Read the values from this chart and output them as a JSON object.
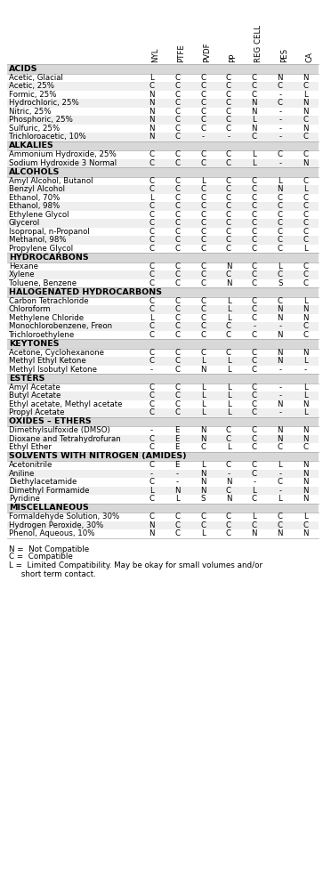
{
  "columns": [
    "NYL",
    "PTFE",
    "PVDF",
    "PP",
    "REG CELL",
    "PES",
    "CA"
  ],
  "sections": [
    {
      "name": "ACIDS",
      "rows": [
        [
          "Acetic, Glacial",
          "L",
          "C",
          "C",
          "C",
          "C",
          "N",
          "N"
        ],
        [
          "Acetic, 25%",
          "C",
          "C",
          "C",
          "C",
          "C",
          "C",
          "C"
        ],
        [
          "Formic, 25%",
          "N",
          "C",
          "C",
          "C",
          "C",
          "-",
          "L"
        ],
        [
          "Hydrochloric, 25%",
          "N",
          "C",
          "C",
          "C",
          "N",
          "C",
          "N"
        ],
        [
          "Nitric, 25%",
          "N",
          "C",
          "C",
          "C",
          "N",
          "-",
          "N"
        ],
        [
          "Phosphoric, 25%",
          "N",
          "C",
          "C",
          "C",
          "L",
          "-",
          "C"
        ],
        [
          "Sulfuric, 25%",
          "N",
          "C",
          "C",
          "C",
          "N",
          "-",
          "N"
        ],
        [
          "Trichloroacetic, 10%",
          "N",
          "C",
          "-",
          "-",
          "C",
          "-",
          "C"
        ]
      ]
    },
    {
      "name": "ALKALIES",
      "rows": [
        [
          "Ammonium Hydroxide, 25%",
          "C",
          "C",
          "C",
          "C",
          "L",
          "C",
          "C"
        ],
        [
          "Sodium Hydroxide 3 Normal",
          "C",
          "C",
          "C",
          "C",
          "L",
          "-",
          "N"
        ]
      ]
    },
    {
      "name": "ALCOHOLS",
      "rows": [
        [
          "Amyl Alcohol, Butanol",
          "C",
          "C",
          "L",
          "C",
          "C",
          "L",
          "C"
        ],
        [
          "Benzyl Alcohol",
          "C",
          "C",
          "C",
          "C",
          "C",
          "N",
          "L"
        ],
        [
          "Ethanol, 70%",
          "L",
          "C",
          "C",
          "C",
          "C",
          "C",
          "C"
        ],
        [
          "Ethanol, 98%",
          "C",
          "C",
          "C",
          "C",
          "C",
          "C",
          "C"
        ],
        [
          "Ethylene Glycol",
          "C",
          "C",
          "C",
          "C",
          "C",
          "C",
          "C"
        ],
        [
          "Glycerol",
          "C",
          "C",
          "C",
          "C",
          "C",
          "C",
          "C"
        ],
        [
          "Isopropal, n-Propanol",
          "C",
          "C",
          "C",
          "C",
          "C",
          "C",
          "C"
        ],
        [
          "Methanol, 98%",
          "C",
          "C",
          "C",
          "C",
          "C",
          "C",
          "C"
        ],
        [
          "Propylene Glycol",
          "C",
          "C",
          "C",
          "C",
          "C",
          "C",
          "L"
        ]
      ]
    },
    {
      "name": "HYDROCARBONS",
      "rows": [
        [
          "Hexane",
          "C",
          "C",
          "C",
          "N",
          "C",
          "L",
          "C"
        ],
        [
          "Xylene",
          "C",
          "C",
          "C",
          "C",
          "C",
          "C",
          "C"
        ],
        [
          "Toluene, Benzene",
          "C",
          "C",
          "C",
          "N",
          "C",
          "S",
          "C"
        ]
      ]
    },
    {
      "name": "HALOGENATED HYDROCARBONS",
      "rows": [
        [
          "Carbon Tetrachloride",
          "C",
          "C",
          "C",
          "L",
          "C",
          "C",
          "L"
        ],
        [
          "Chloroform",
          "C",
          "C",
          "C",
          "L",
          "C",
          "N",
          "N"
        ],
        [
          "Methylene Chloride",
          "L",
          "C",
          "C",
          "L",
          "C",
          "N",
          "N"
        ],
        [
          "Monochlorobenzene, Freon",
          "C",
          "C",
          "C",
          "C",
          "-",
          "-",
          "C"
        ],
        [
          "Trichloroethylene",
          "C",
          "C",
          "C",
          "C",
          "C",
          "N",
          "C"
        ]
      ]
    },
    {
      "name": "KEYTONES",
      "rows": [
        [
          "Acetone, Cyclohexanone",
          "C",
          "C",
          "C",
          "C",
          "C",
          "N",
          "N"
        ],
        [
          "Methyl Ethyl Ketone",
          "C",
          "C",
          "L",
          "L",
          "C",
          "N",
          "L"
        ],
        [
          "Methyl Isobutyl Ketone",
          "-",
          "C",
          "N",
          "L",
          "C",
          "-",
          "-"
        ]
      ]
    },
    {
      "name": "ESTERS",
      "rows": [
        [
          "Amyl Acetate",
          "C",
          "C",
          "L",
          "L",
          "C",
          "-",
          "L"
        ],
        [
          "Butyl Acetate",
          "C",
          "C",
          "L",
          "L",
          "C",
          "-",
          "L"
        ],
        [
          "Ethyl acetate, Methyl acetate",
          "C",
          "C",
          "L",
          "L",
          "C",
          "N",
          "N"
        ],
        [
          "Propyl Acetate",
          "C",
          "C",
          "L",
          "L",
          "C",
          "-",
          "L"
        ]
      ]
    },
    {
      "name": "OXIDES – ETHERS",
      "rows": [
        [
          "Dimethylsulfoxide (DMSO)",
          "-",
          "E",
          "N",
          "C",
          "C",
          "N",
          "N"
        ],
        [
          "Dioxane and Tetrahydrofuran",
          "C",
          "E",
          "N",
          "C",
          "C",
          "N",
          "N"
        ],
        [
          "Ethyl Ether",
          "C",
          "E",
          "C",
          "L",
          "C",
          "C",
          "C"
        ]
      ]
    },
    {
      "name": "SOLVENTS WITH NITROGEN (AMIDES)",
      "rows": [
        [
          "Acetonitrile",
          "C",
          "E",
          "L",
          "C",
          "C",
          "L",
          "N"
        ],
        [
          "Aniline",
          "-",
          "-",
          "N",
          "-",
          "C",
          "-",
          "N"
        ],
        [
          "Diethylacetamide",
          "C",
          "-",
          "N",
          "N",
          "-",
          "C",
          "N"
        ],
        [
          "Dimethyl Formamide",
          "L",
          "N",
          "N",
          "C",
          "L",
          "-",
          "N"
        ],
        [
          "Pyridine",
          "C",
          "L",
          "S",
          "N",
          "C",
          "L",
          "N"
        ]
      ]
    },
    {
      "name": "MISCELLANEOUS",
      "rows": [
        [
          "Formaldehyde Solution, 30%",
          "C",
          "C",
          "C",
          "C",
          "L",
          "C",
          "L"
        ],
        [
          "Hydrogen Peroxide, 30%",
          "N",
          "C",
          "C",
          "C",
          "C",
          "C",
          "C"
        ],
        [
          "Phenol, Aqueous, 10%",
          "N",
          "C",
          "L",
          "C",
          "N",
          "N",
          "N"
        ]
      ]
    }
  ],
  "section_bg": "#d8d8d8",
  "row_bg_alt": "#efefef",
  "row_bg_main": "#ffffff",
  "font_size": 6.2,
  "section_font_size": 6.8,
  "col_font_size": 6.2,
  "fig_width": 3.63,
  "fig_height": 9.89
}
